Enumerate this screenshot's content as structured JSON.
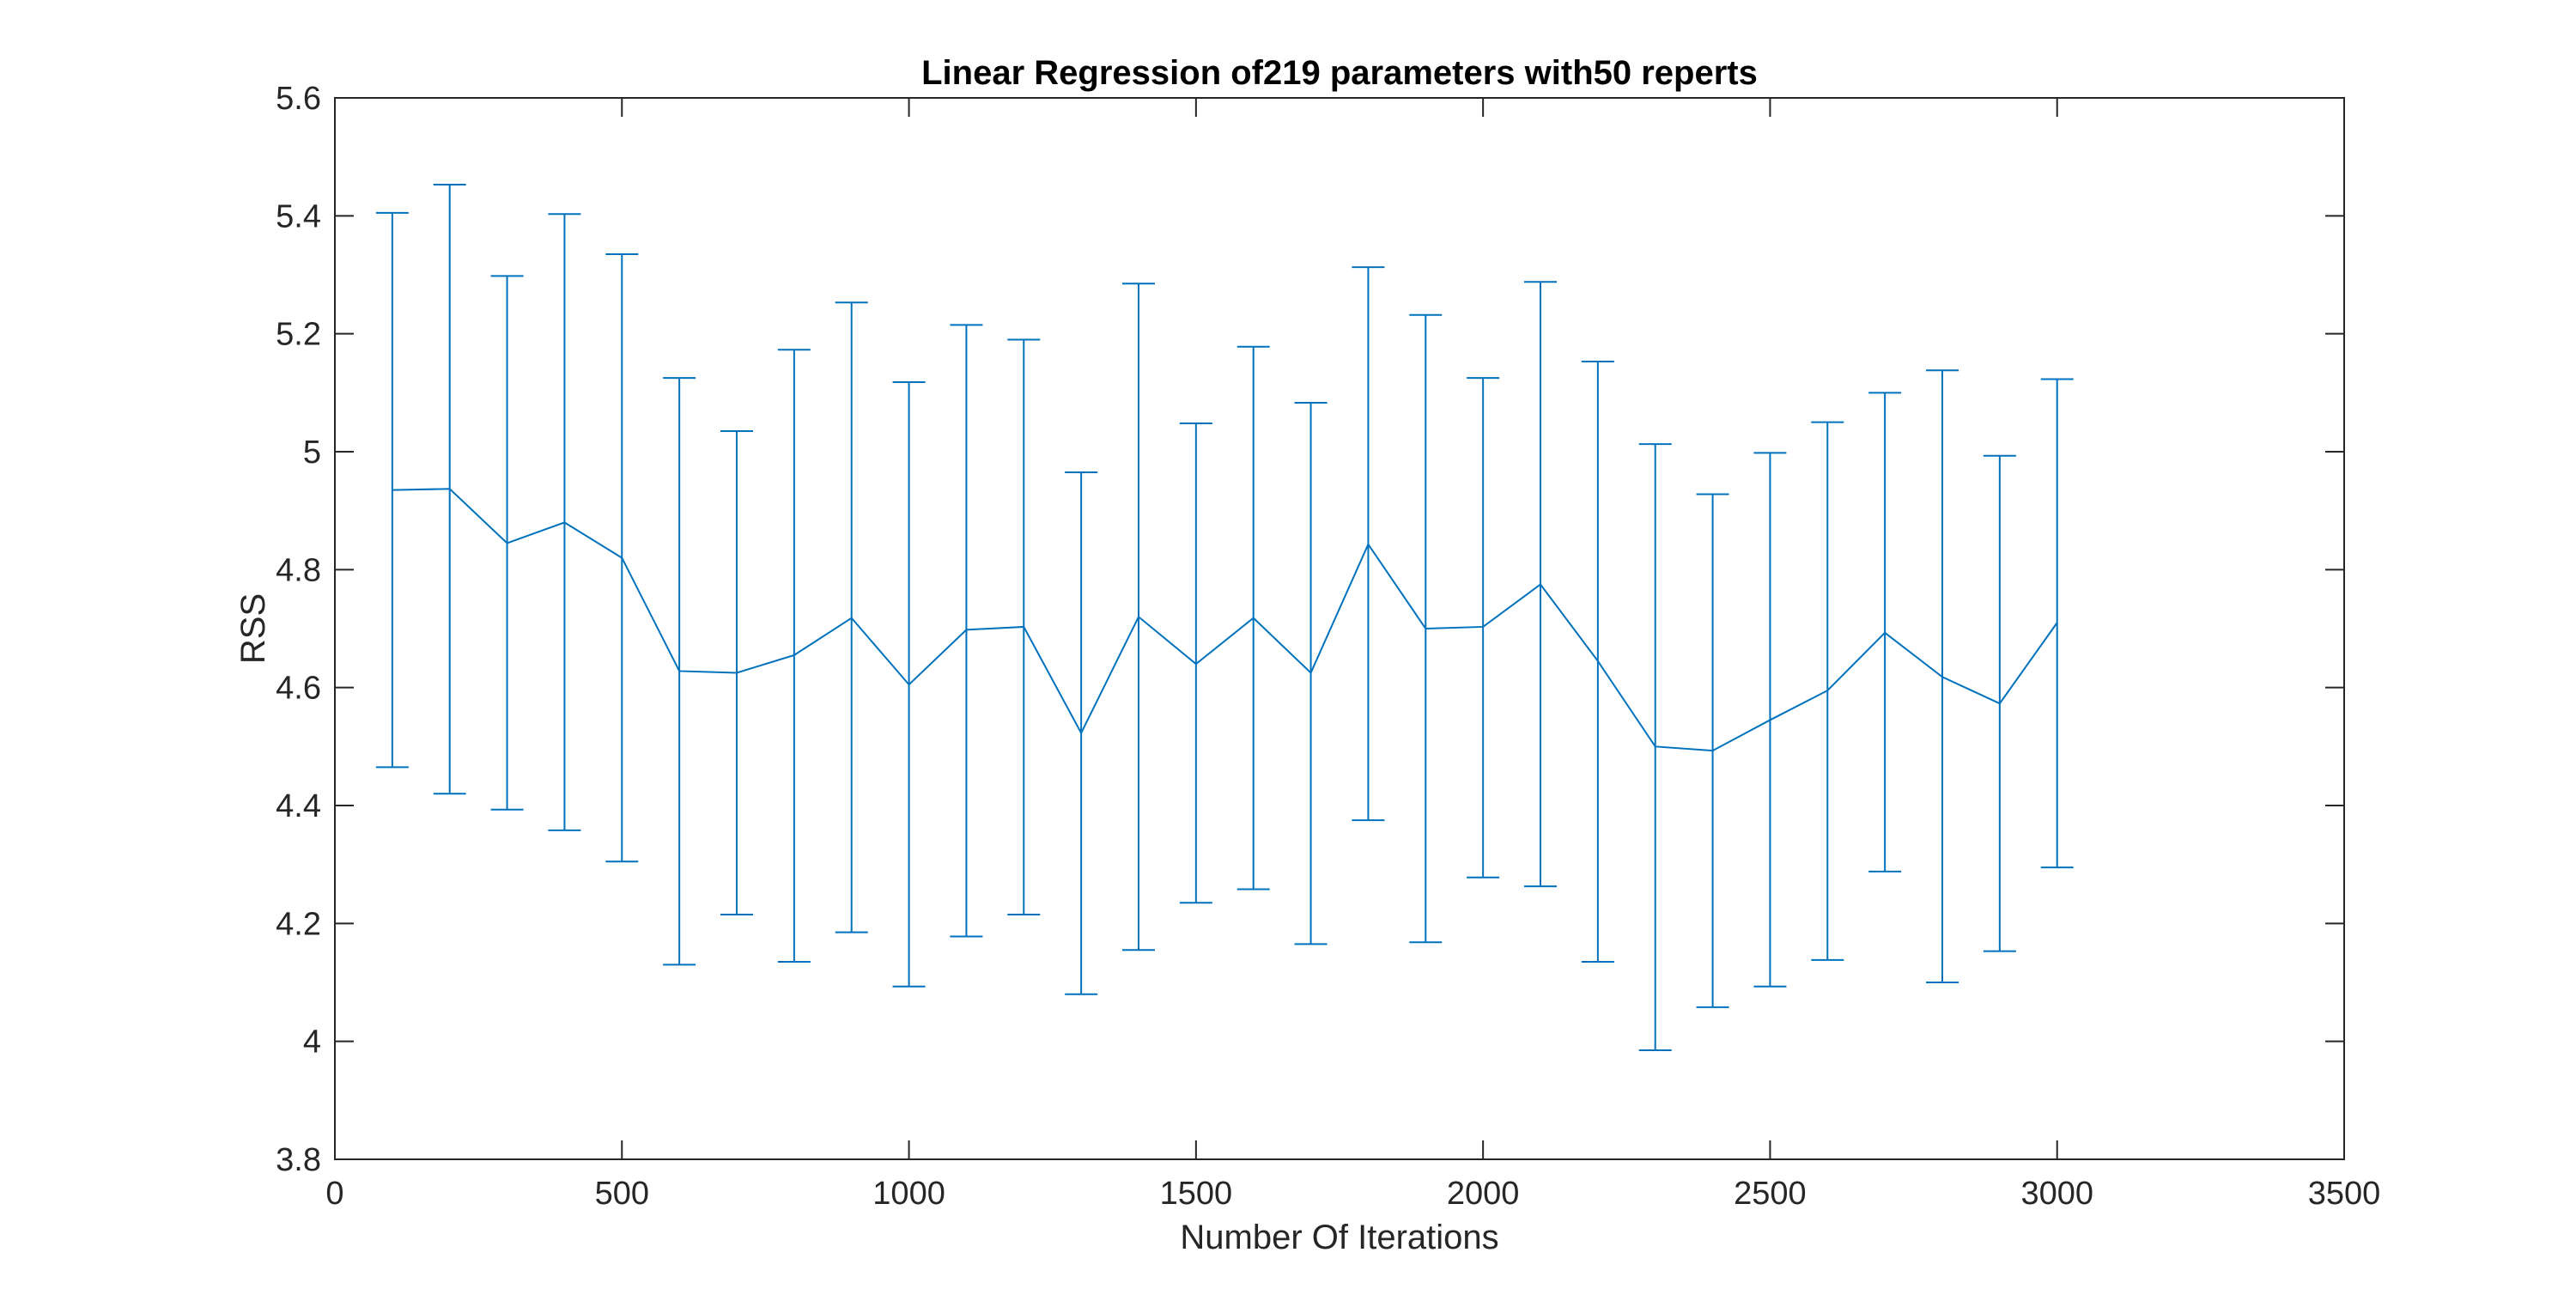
{
  "chart_data": {
    "type": "line",
    "title": "Linear Regression of219 parameters with50 reperts",
    "xlabel": "Number Of Iterations",
    "ylabel": "RSS",
    "xlim": [
      0,
      3500
    ],
    "ylim": [
      3.8,
      5.6
    ],
    "xticks": [
      "0",
      "500",
      "1000",
      "1500",
      "2000",
      "2500",
      "3000",
      "3500"
    ],
    "yticks": [
      "3.8",
      "4",
      "4.2",
      "4.4",
      "4.6",
      "4.8",
      "5",
      "5.2",
      "5.4",
      "5.6"
    ],
    "grid": false,
    "series": [
      {
        "color": "#0072BD",
        "error_bars": true,
        "x": [
          100,
          200,
          300,
          400,
          500,
          600,
          700,
          800,
          900,
          1000,
          1100,
          1200,
          1300,
          1400,
          1500,
          1600,
          1700,
          1800,
          1900,
          2000,
          2100,
          2200,
          2300,
          2400,
          2500,
          2600,
          2700,
          2800,
          2900,
          3000
        ],
        "y": [
          4.935,
          4.937,
          4.845,
          4.88,
          4.82,
          4.628,
          4.625,
          4.655,
          4.718,
          4.605,
          4.698,
          4.703,
          4.523,
          4.72,
          4.64,
          4.718,
          4.625,
          4.843,
          4.7,
          4.703,
          4.775,
          4.645,
          4.5,
          4.493,
          4.545,
          4.595,
          4.693,
          4.618,
          4.573,
          4.71
        ],
        "lower": [
          4.465,
          4.42,
          4.393,
          4.358,
          4.305,
          4.13,
          4.215,
          4.135,
          4.185,
          4.093,
          4.178,
          4.215,
          4.08,
          4.155,
          4.235,
          4.258,
          4.165,
          4.375,
          4.168,
          4.278,
          4.263,
          4.135,
          3.985,
          4.058,
          4.093,
          4.138,
          4.288,
          4.1,
          4.153,
          4.295
        ],
        "upper": [
          5.405,
          5.453,
          5.298,
          5.403,
          5.335,
          5.125,
          5.035,
          5.173,
          5.253,
          5.118,
          5.215,
          5.19,
          4.965,
          5.285,
          5.048,
          5.178,
          5.083,
          5.313,
          5.232,
          5.125,
          5.288,
          5.153,
          5.013,
          4.928,
          4.998,
          5.05,
          5.1,
          5.138,
          4.993,
          5.123
        ]
      }
    ]
  }
}
